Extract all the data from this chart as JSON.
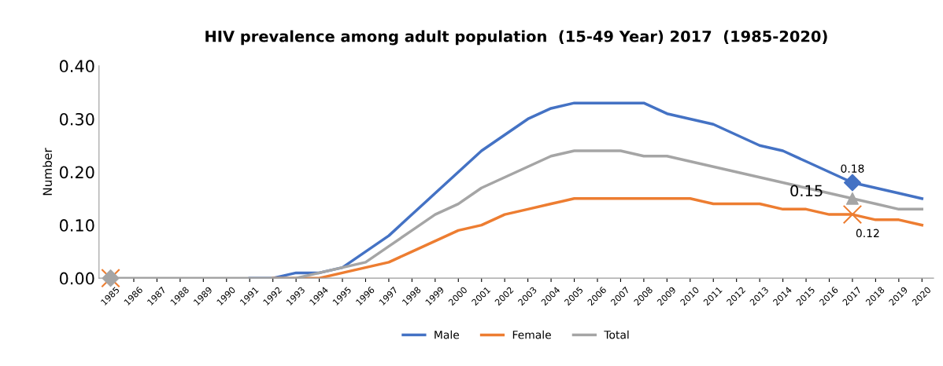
{
  "chart_data": {
    "type": "line",
    "title": "HIV prevalence among adult population  (15-49 Year) 2017  (1985-2020)",
    "ylabel": "Number",
    "categories": [
      "1985",
      "1986",
      "1987",
      "1988",
      "1989",
      "1990",
      "1991",
      "1992",
      "1993",
      "1994",
      "1995",
      "1996",
      "1997",
      "1998",
      "1999",
      "2000",
      "2001",
      "2002",
      "2003",
      "2004",
      "2005",
      "2006",
      "2007",
      "2008",
      "2009",
      "2010",
      "2011",
      "2012",
      "2013",
      "2014",
      "2015",
      "2016",
      "2017",
      "2018",
      "2019",
      "2020"
    ],
    "series": [
      {
        "name": "Male",
        "color": "#4472c4",
        "values": [
          null,
          null,
          null,
          null,
          null,
          null,
          0,
          0,
          0.01,
          0.01,
          0.02,
          0.05,
          0.08,
          0.12,
          0.16,
          0.2,
          0.24,
          0.27,
          0.3,
          0.32,
          0.33,
          0.33,
          0.33,
          0.33,
          0.31,
          0.3,
          0.29,
          0.27,
          0.25,
          0.24,
          0.22,
          0.2,
          0.18,
          0.17,
          0.16,
          0.15
        ]
      },
      {
        "name": "Female",
        "color": "#ed7d31",
        "values": [
          null,
          null,
          null,
          null,
          null,
          null,
          null,
          0,
          0,
          0,
          0.01,
          0.02,
          0.03,
          0.05,
          0.07,
          0.09,
          0.1,
          0.12,
          0.13,
          0.14,
          0.15,
          0.15,
          0.15,
          0.15,
          0.15,
          0.15,
          0.14,
          0.14,
          0.14,
          0.13,
          0.13,
          0.12,
          0.12,
          0.11,
          0.11,
          0.1
        ]
      },
      {
        "name": "Total",
        "color": "#a5a5a5",
        "values": [
          0,
          0,
          0,
          0,
          0,
          0,
          0,
          0,
          0,
          0.01,
          0.02,
          0.03,
          0.06,
          0.09,
          0.12,
          0.14,
          0.17,
          0.19,
          0.21,
          0.23,
          0.24,
          0.24,
          0.24,
          0.23,
          0.23,
          0.22,
          0.21,
          0.2,
          0.19,
          0.18,
          0.17,
          0.16,
          0.15,
          0.14,
          0.13,
          0.13
        ]
      },
      {
        "type": "scatter",
        "values": [
          null,
          null,
          null,
          null,
          null,
          null,
          null,
          null,
          null,
          null,
          null,
          null,
          null,
          null,
          null,
          null,
          null,
          null,
          null,
          null,
          null,
          null,
          null,
          null,
          null,
          null,
          null,
          null,
          null,
          null,
          null,
          null,
          0.18,
          null,
          null,
          null
        ],
        "color": "#4472c4",
        "marker": "diamond"
      },
      {
        "type": "scatter",
        "values": [
          0,
          null,
          null,
          null,
          null,
          null,
          null,
          null,
          null,
          null,
          null,
          null,
          null,
          null,
          null,
          null,
          null,
          null,
          null,
          null,
          null,
          null,
          null,
          null,
          null,
          null,
          null,
          null,
          null,
          null,
          null,
          null,
          0.12,
          null,
          null,
          null
        ],
        "color": "#ed7d31",
        "marker": "cross"
      },
      {
        "type": "scatter",
        "values": [
          0,
          null,
          null,
          null,
          null,
          null,
          null,
          null,
          null,
          null,
          null,
          null,
          null,
          null,
          null,
          null,
          null,
          null,
          null,
          null,
          null,
          null,
          null,
          null,
          null,
          null,
          null,
          null,
          null,
          null,
          null,
          null,
          null,
          null,
          null,
          null
        ],
        "color": "#a5a5a5",
        "marker": "diamond"
      },
      {
        "type": "scatter",
        "values": [
          null,
          null,
          null,
          null,
          null,
          null,
          null,
          null,
          null,
          null,
          null,
          null,
          null,
          null,
          null,
          null,
          null,
          null,
          null,
          null,
          null,
          null,
          null,
          null,
          null,
          null,
          null,
          null,
          null,
          null,
          null,
          null,
          0.15,
          null,
          null,
          null
        ],
        "color": "#a5a5a5",
        "marker": "triangle"
      }
    ],
    "annotations": [
      {
        "text": "0.18",
        "x": "2017",
        "y": 0.18
      },
      {
        "text": "0.15",
        "x": "2017",
        "y": 0.15
      },
      {
        "text": "0.12",
        "x": "2017",
        "y": 0.12
      }
    ],
    "ylim": [
      0,
      0.4
    ],
    "yticks": [
      {
        "value": 0,
        "label": "0.00"
      },
      {
        "value": 0.1,
        "label": "0.10"
      },
      {
        "value": 0.2,
        "label": "0.20"
      },
      {
        "value": 0.3,
        "label": "0.30"
      },
      {
        "value": 0.4,
        "label": "0.40"
      }
    ],
    "grid": false,
    "legend": "bottom",
    "line_style": "solid"
  }
}
